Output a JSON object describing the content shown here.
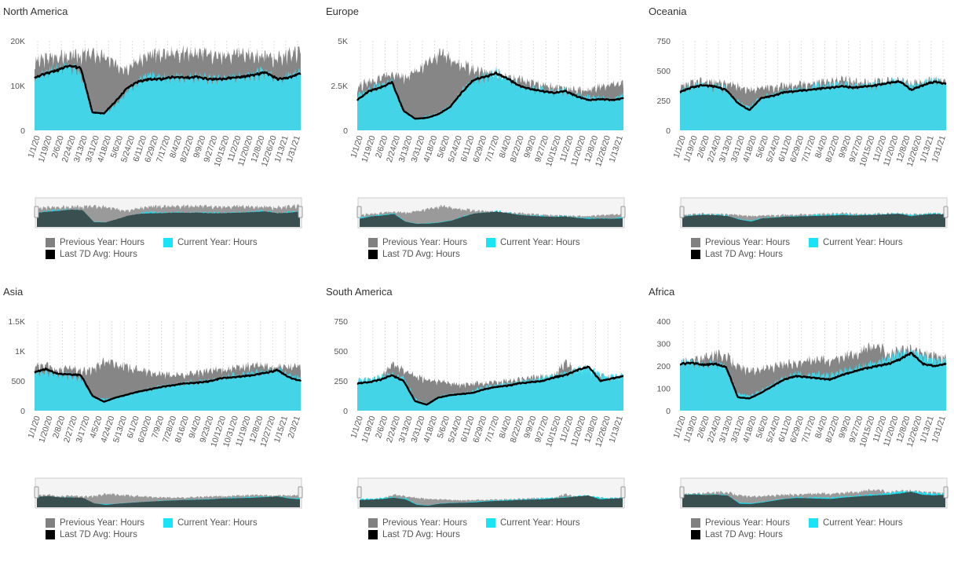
{
  "colors": {
    "previous": "#808080",
    "current": "#3fd9ec",
    "current_bright": "#19e4f5",
    "avg": "#000000",
    "navigator_fill": "#3a5050",
    "grid": "#dddddd"
  },
  "legend": {
    "previous": "Previous Year: Hours",
    "current": "Current Year: Hours",
    "avg": "Last 7D Avg: Hours"
  },
  "chart_data": [
    {
      "type": "area",
      "title": "North America",
      "ylim": [
        0,
        20000
      ],
      "yticks": [
        "0",
        "10K",
        "20K"
      ],
      "ytick_values": [
        0,
        10000,
        20000
      ],
      "xticks": [
        "1/1/20",
        "1/19/20",
        "2/6/20",
        "2/24/20",
        "3/13/20",
        "3/31/20",
        "4/18/20",
        "5/6/20",
        "5/24/20",
        "6/11/20",
        "6/29/20",
        "7/17/20",
        "8/4/20",
        "8/22/20",
        "9/9/20",
        "9/27/20",
        "10/15/20",
        "11/2/20",
        "11/20/20",
        "12/8/20",
        "12/26/20",
        "1/13/21",
        "1/31/21"
      ],
      "series": [
        {
          "name": "Previous Year: Hours",
          "values": [
            15500,
            16500,
            17000,
            16800,
            17200,
            17500,
            16800,
            15000,
            14500,
            16000,
            17000,
            17500,
            17800,
            18000,
            17800,
            17500,
            17000,
            17200,
            17500,
            17300,
            16800,
            16500,
            17500,
            18000
          ]
        },
        {
          "name": "Current Year: Hours",
          "values": [
            12000,
            13500,
            14200,
            15000,
            13000,
            4500,
            3800,
            6000,
            9000,
            11500,
            12500,
            12000,
            12500,
            12000,
            12500,
            12000,
            11800,
            12000,
            12500,
            13000,
            13500,
            12000,
            12500,
            13500
          ]
        },
        {
          "name": "Last 7D Avg: Hours",
          "values": [
            11800,
            12800,
            13500,
            14500,
            14000,
            4000,
            3800,
            6500,
            9500,
            11000,
            11500,
            11500,
            12000,
            11800,
            12000,
            11500,
            11500,
            11800,
            12000,
            12500,
            13000,
            11500,
            11800,
            12800
          ]
        }
      ]
    },
    {
      "type": "area",
      "title": "Europe",
      "ylim": [
        0,
        5000
      ],
      "yticks": [
        "0",
        "2.5K",
        "5K"
      ],
      "ytick_values": [
        0,
        2500,
        5000
      ],
      "xticks": [
        "1/1/20",
        "1/19/20",
        "2/6/20",
        "2/24/20",
        "3/13/20",
        "3/31/20",
        "4/18/20",
        "5/6/20",
        "5/24/20",
        "6/11/20",
        "6/29/20",
        "7/17/20",
        "8/4/20",
        "8/22/20",
        "9/9/20",
        "9/27/20",
        "10/15/20",
        "11/2/20",
        "11/20/20",
        "12/8/20",
        "12/26/20",
        "1/13/21"
      ],
      "series": [
        {
          "name": "Previous Year: Hours",
          "values": [
            2500,
            2800,
            3000,
            3200,
            3000,
            3300,
            3800,
            4300,
            4200,
            3800,
            3500,
            3400,
            3200,
            3000,
            2900,
            2700,
            2600,
            2500,
            2400,
            2300,
            2300,
            2500,
            2600,
            2700
          ]
        },
        {
          "name": "Current Year: Hours",
          "values": [
            2000,
            2300,
            2600,
            2800,
            1200,
            700,
            800,
            1000,
            1400,
            2200,
            2900,
            3100,
            3300,
            3000,
            2600,
            2400,
            2300,
            2200,
            2300,
            2000,
            1900,
            1900,
            1800,
            2000
          ]
        },
        {
          "name": "Last 7D Avg: Hours",
          "values": [
            1700,
            2200,
            2400,
            2700,
            1100,
            650,
            700,
            900,
            1300,
            2100,
            2800,
            3000,
            3200,
            2900,
            2500,
            2300,
            2200,
            2100,
            2200,
            1900,
            1700,
            1750,
            1700,
            1800
          ]
        }
      ]
    },
    {
      "type": "area",
      "title": "Oceania",
      "ylim": [
        0,
        750
      ],
      "yticks": [
        "0",
        "250",
        "500",
        "750"
      ],
      "ytick_values": [
        0,
        250,
        500,
        750
      ],
      "xticks": [
        "1/1/20",
        "1/19/20",
        "2/6/20",
        "2/24/20",
        "3/13/20",
        "3/31/20",
        "4/18/20",
        "5/6/20",
        "5/24/20",
        "6/11/20",
        "6/29/20",
        "7/17/20",
        "8/4/20",
        "8/22/20",
        "9/9/20",
        "9/27/20",
        "10/15/20",
        "11/2/20",
        "11/20/20",
        "12/8/20",
        "12/26/20",
        "1/13/21",
        "1/31/21"
      ],
      "series": [
        {
          "name": "Previous Year: Hours",
          "values": [
            360,
            400,
            420,
            410,
            400,
            380,
            350,
            360,
            370,
            380,
            390,
            400,
            410,
            420,
            430,
            420,
            410,
            420,
            430,
            420,
            400,
            410,
            430,
            420
          ]
        },
        {
          "name": "Current Year: Hours",
          "values": [
            340,
            380,
            400,
            380,
            350,
            250,
            200,
            280,
            300,
            330,
            350,
            360,
            380,
            390,
            400,
            380,
            390,
            400,
            420,
            430,
            380,
            400,
            430,
            400
          ]
        },
        {
          "name": "Last 7D Avg: Hours",
          "values": [
            320,
            360,
            380,
            370,
            340,
            230,
            170,
            270,
            290,
            320,
            330,
            340,
            350,
            360,
            370,
            360,
            370,
            380,
            400,
            410,
            340,
            380,
            410,
            390
          ]
        }
      ]
    },
    {
      "type": "area",
      "title": "Asia",
      "ylim": [
        0,
        1500
      ],
      "yticks": [
        "0",
        "500",
        "1K",
        "1.5K"
      ],
      "ytick_values": [
        0,
        500,
        1000,
        1500
      ],
      "xticks": [
        "1/1/20",
        "1/20/20",
        "2/8/20",
        "2/27/20",
        "3/17/20",
        "4/5/20",
        "4/24/20",
        "5/13/20",
        "6/1/20",
        "6/20/20",
        "7/9/20",
        "7/28/20",
        "8/16/20",
        "9/4/20",
        "9/23/20",
        "10/12/20",
        "10/31/20",
        "11/19/20",
        "12/8/20",
        "12/27/20",
        "1/15/21",
        "2/3/21"
      ],
      "series": [
        {
          "name": "Previous Year: Hours",
          "values": [
            750,
            780,
            700,
            720,
            680,
            700,
            850,
            800,
            750,
            700,
            650,
            620,
            600,
            620,
            650,
            680,
            700,
            720,
            750,
            780,
            760,
            750,
            760,
            740
          ]
        },
        {
          "name": "Current Year: Hours",
          "values": [
            700,
            650,
            620,
            600,
            550,
            250,
            200,
            230,
            280,
            330,
            380,
            420,
            450,
            480,
            500,
            520,
            560,
            600,
            620,
            650,
            680,
            700,
            620,
            560
          ]
        },
        {
          "name": "Last 7D Avg: Hours",
          "values": [
            650,
            700,
            620,
            610,
            600,
            250,
            150,
            220,
            270,
            320,
            360,
            400,
            430,
            460,
            470,
            490,
            540,
            560,
            580,
            600,
            640,
            680,
            560,
            500
          ]
        }
      ]
    },
    {
      "type": "area",
      "title": "South America",
      "ylim": [
        0,
        750
      ],
      "yticks": [
        "0",
        "250",
        "500",
        "750"
      ],
      "ytick_values": [
        0,
        250,
        500,
        750
      ],
      "xticks": [
        "1/1/20",
        "1/19/20",
        "2/6/20",
        "2/24/20",
        "3/13/20",
        "3/31/20",
        "4/18/20",
        "5/6/20",
        "5/24/20",
        "6/11/20",
        "6/29/20",
        "7/17/20",
        "8/4/20",
        "8/22/20",
        "9/9/20",
        "9/27/20",
        "10/15/20",
        "11/2/20",
        "11/20/20",
        "12/8/20",
        "12/26/20",
        "1/13/21"
      ],
      "series": [
        {
          "name": "Previous Year: Hours",
          "values": [
            230,
            260,
            280,
            400,
            350,
            300,
            260,
            250,
            240,
            220,
            230,
            240,
            250,
            260,
            270,
            280,
            290,
            300,
            420,
            330,
            320,
            300,
            280,
            290
          ]
        },
        {
          "name": "Current Year: Hours",
          "values": [
            260,
            270,
            290,
            320,
            280,
            100,
            60,
            120,
            140,
            150,
            170,
            200,
            220,
            230,
            250,
            260,
            270,
            300,
            320,
            350,
            380,
            300,
            290,
            300
          ]
        },
        {
          "name": "Last 7D Avg: Hours",
          "values": [
            230,
            240,
            260,
            300,
            250,
            80,
            50,
            110,
            130,
            140,
            150,
            180,
            200,
            210,
            230,
            240,
            250,
            280,
            300,
            340,
            370,
            250,
            270,
            290
          ]
        }
      ]
    },
    {
      "type": "area",
      "title": "Africa",
      "ylim": [
        0,
        400
      ],
      "yticks": [
        "0",
        "100",
        "200",
        "300",
        "400"
      ],
      "ytick_values": [
        0,
        100,
        200,
        300,
        400
      ],
      "xticks": [
        "1/1/20",
        "1/19/20",
        "2/6/20",
        "2/24/20",
        "3/13/20",
        "3/31/20",
        "4/18/20",
        "5/6/20",
        "5/24/20",
        "6/11/20",
        "6/29/20",
        "7/17/20",
        "8/4/20",
        "8/22/20",
        "9/9/20",
        "9/27/20",
        "10/15/20",
        "11/2/20",
        "11/20/20",
        "12/8/20",
        "12/26/20",
        "1/13/21",
        "1/31/21"
      ],
      "series": [
        {
          "name": "Previous Year: Hours",
          "values": [
            220,
            230,
            240,
            260,
            250,
            200,
            180,
            190,
            200,
            210,
            220,
            230,
            240,
            230,
            250,
            260,
            280,
            300,
            260,
            270,
            280,
            260,
            250,
            240
          ]
        },
        {
          "name": "Current Year: Hours",
          "values": [
            230,
            220,
            210,
            220,
            200,
            80,
            70,
            90,
            120,
            150,
            170,
            160,
            170,
            160,
            180,
            190,
            210,
            230,
            240,
            260,
            270,
            250,
            230,
            220
          ]
        },
        {
          "name": "Last 7D Avg: Hours",
          "values": [
            210,
            215,
            205,
            210,
            195,
            60,
            55,
            80,
            110,
            140,
            155,
            150,
            145,
            140,
            160,
            175,
            190,
            200,
            210,
            230,
            260,
            210,
            200,
            210
          ]
        }
      ]
    }
  ]
}
